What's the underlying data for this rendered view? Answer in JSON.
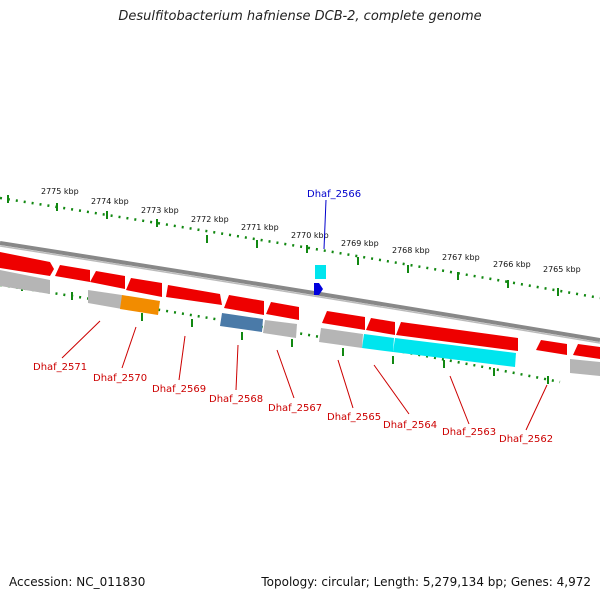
{
  "title": "Desulfitobacterium hafniense DCB-2, complete genome",
  "footer": {
    "accession": "Accession: NC_011830",
    "summary": "Topology: circular; Length: 5,279,134 bp; Genes: 4,972"
  },
  "colors": {
    "forward_gene": "#ee0000",
    "rna": "#00e5ee",
    "grey_gene": "#b5b5b5",
    "orange_gene": "#f28c00",
    "steel_gene": "#4a7aa8",
    "highlight": "#0000dd",
    "ticks": "#118811",
    "label_red": "#cc0000",
    "label_blue": "#0000cc"
  },
  "kbp_labels": [
    "2775 kbp",
    "2774 kbp",
    "2773 kbp",
    "2772 kbp",
    "2771 kbp",
    "2770 kbp",
    "2769 kbp",
    "2768 kbp",
    "2767 kbp",
    "2766 kbp",
    "2765 kbp"
  ],
  "gene_labels": {
    "top": [
      "Dhaf_2566"
    ],
    "bottom": [
      "Dhaf_2571",
      "Dhaf_2570",
      "Dhaf_2569",
      "Dhaf_2568",
      "Dhaf_2567",
      "Dhaf_2565",
      "Dhaf_2564",
      "Dhaf_2563",
      "Dhaf_2562"
    ]
  }
}
